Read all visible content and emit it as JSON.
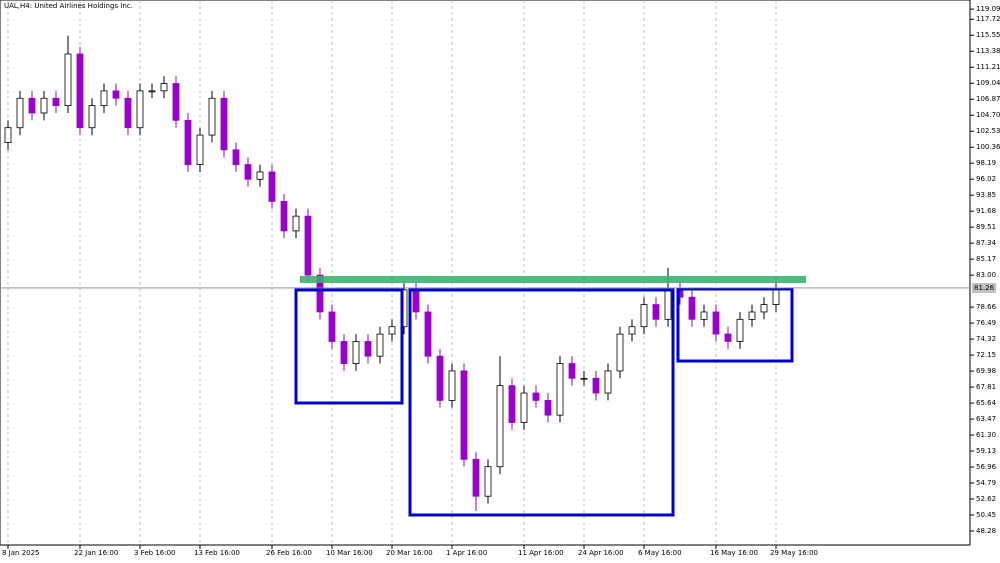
{
  "chart_data": {
    "type": "candlestick",
    "title": "UAL,H4:  United Airlines Holdings Inc.",
    "categories": [
      "8 Jan 2025",
      null,
      null,
      null,
      null,
      null,
      "22 Jan 16:00",
      null,
      null,
      null,
      null,
      "3 Feb 16:00",
      null,
      null,
      null,
      null,
      "13 Feb 16:00",
      null,
      null,
      null,
      null,
      null,
      "26 Feb 16:00",
      null,
      null,
      null,
      null,
      "10 Mar 16:00",
      null,
      null,
      null,
      null,
      "20 Mar 16:00",
      null,
      null,
      null,
      null,
      "1 Apr 16:00",
      null,
      null,
      null,
      null,
      null,
      "11 Apr 16:00",
      null,
      null,
      null,
      null,
      "24 Apr 16:00",
      null,
      null,
      null,
      null,
      "6 May 16:00",
      null,
      null,
      null,
      null,
      null,
      "16 May 16:00",
      null,
      null,
      null,
      null,
      "29 May 16:00"
    ],
    "series": [
      {
        "name": "UAL",
        "up_color": "#ffffff",
        "down_color": "#9900cc",
        "open": [
          101,
          103,
          107,
          105,
          107,
          106,
          113,
          103,
          106,
          108,
          107,
          103,
          108,
          108,
          109,
          104,
          98,
          102,
          107,
          100,
          98,
          96,
          97,
          93,
          89,
          91,
          83,
          78,
          74,
          71,
          74,
          72,
          75,
          76,
          81,
          78,
          72,
          66,
          70,
          58,
          53,
          57,
          68,
          63,
          67,
          66,
          64,
          71,
          69,
          69,
          67,
          70,
          75,
          76,
          79,
          77,
          81,
          80,
          77,
          78,
          75,
          74,
          77,
          78,
          79
        ],
        "high": [
          104,
          108,
          108,
          108,
          108,
          115.5,
          114,
          107,
          109,
          109,
          108,
          109,
          109,
          110,
          110,
          105,
          103,
          108,
          108,
          101,
          99,
          98,
          98,
          94,
          92,
          92,
          84,
          79,
          75,
          75,
          75,
          76,
          77,
          82,
          82,
          79,
          73,
          71,
          71,
          59,
          58,
          72,
          69,
          68,
          68,
          67,
          72,
          72,
          70,
          70,
          71,
          76,
          77,
          80,
          80,
          84,
          82,
          81,
          79,
          79,
          76,
          78,
          79,
          80,
          82
        ],
        "low": [
          100,
          102,
          104,
          104,
          105,
          105,
          102,
          102,
          105,
          106,
          102,
          102,
          107,
          107,
          103,
          97,
          97,
          101,
          99,
          97,
          95,
          95,
          92,
          88,
          88,
          82,
          77,
          73,
          70,
          70,
          71,
          71,
          74,
          75,
          77,
          71,
          65,
          65,
          57,
          51,
          52,
          56,
          62,
          62,
          65,
          63,
          63,
          68,
          68,
          66,
          66,
          69,
          74,
          75,
          76,
          76,
          79,
          76,
          76,
          74,
          73,
          73,
          76,
          77,
          78
        ],
        "close": [
          103,
          107,
          105,
          107,
          106,
          113,
          103,
          106,
          108,
          107,
          103,
          108,
          108,
          109,
          104,
          98,
          102,
          107,
          100,
          98,
          96,
          97,
          93,
          89,
          91,
          83,
          78,
          74,
          71,
          74,
          72,
          75,
          76,
          81,
          78,
          72,
          66,
          70,
          58,
          53,
          57,
          68,
          63,
          67,
          66,
          64,
          71,
          69,
          69,
          67,
          70,
          75,
          76,
          79,
          77,
          81,
          80,
          77,
          78,
          75,
          74,
          77,
          78,
          79,
          81
        ]
      }
    ],
    "ylim": [
      46.38,
      120.33
    ],
    "yticks": [
      119.09,
      117.72,
      115.55,
      113.38,
      111.21,
      109.04,
      106.87,
      {
        "value": 104.7,
        "label": "104.70"
      },
      102.53,
      100.36,
      98.19,
      96.02,
      93.85,
      91.68,
      89.51,
      87.34,
      85.17,
      {
        "value": 83,
        "label": "83.00"
      },
      78.66,
      76.49,
      74.32,
      72.15,
      69.98,
      67.81,
      65.64,
      63.47,
      {
        "value": 61.3,
        "label": "61.30"
      },
      59.13,
      56.96,
      54.79,
      52.62,
      50.45,
      48.28
    ],
    "current_price": 81.26,
    "grid": true
  }
}
